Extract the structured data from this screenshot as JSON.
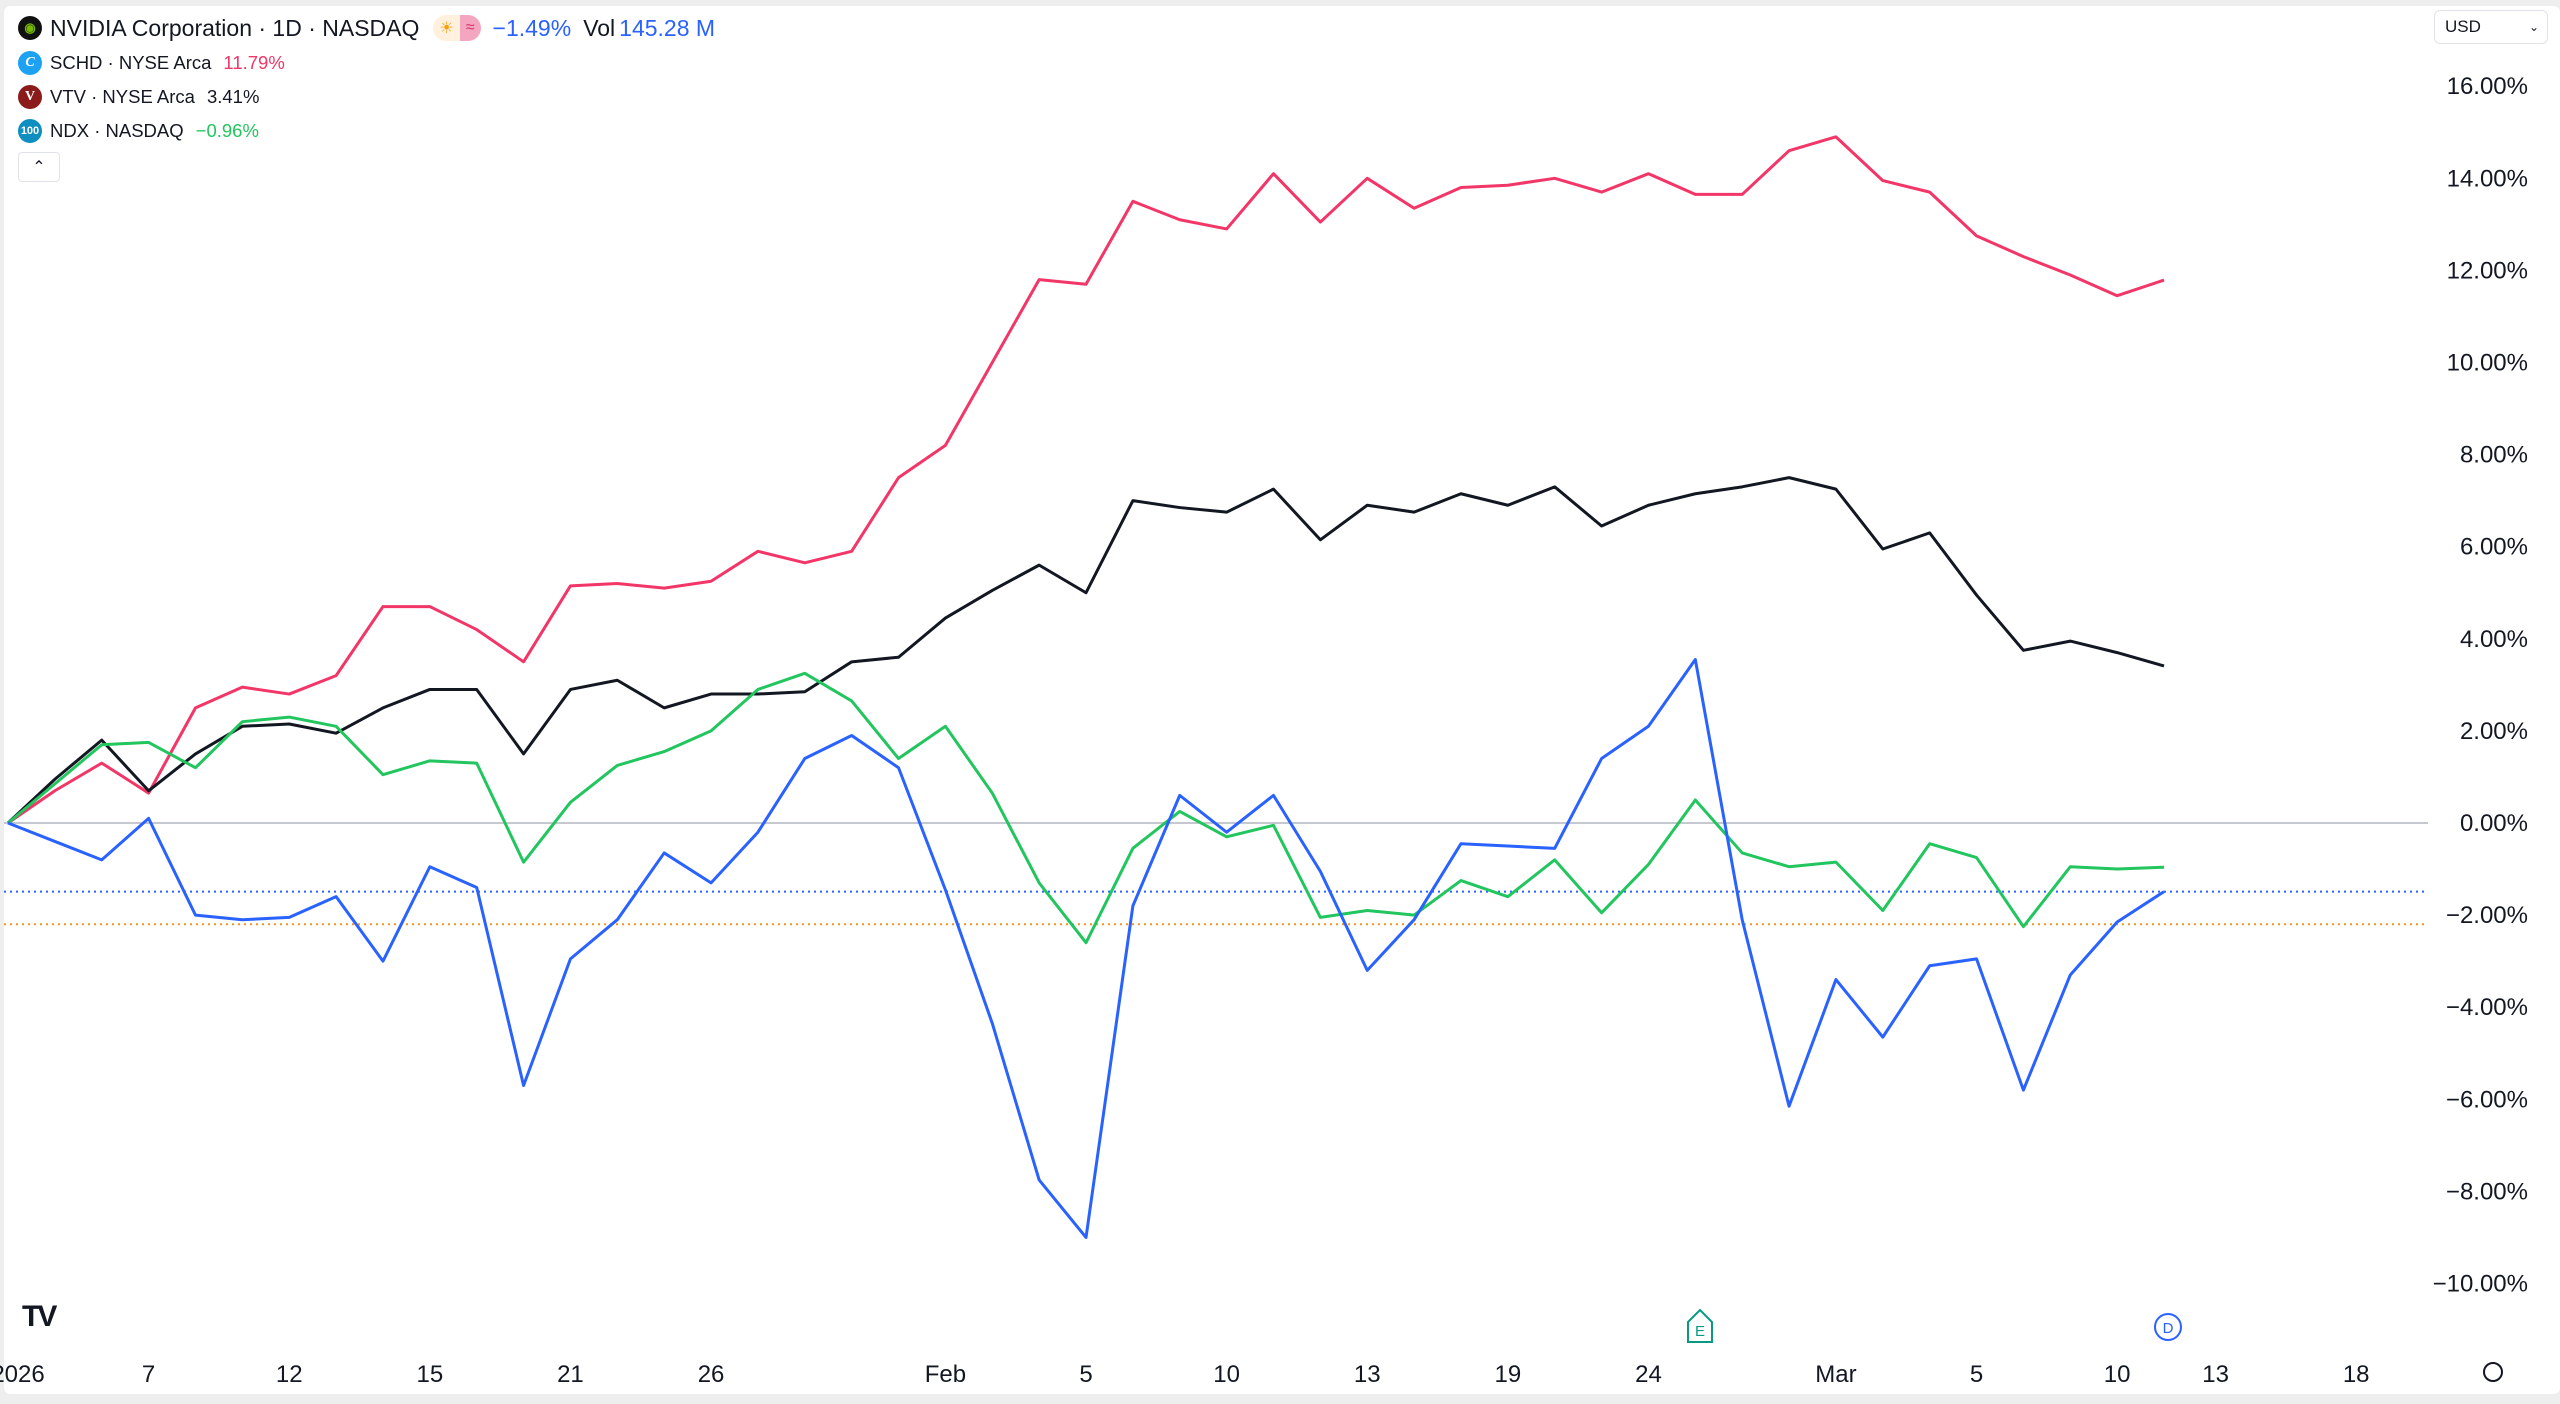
{
  "legend": {
    "main": {
      "name": "NVIDIA Corporation · 1D · NASDAQ",
      "change": "−1.49%",
      "vol_label": "Vol",
      "vol_value": "145.28 M",
      "logo_color": "#111111"
    },
    "items": [
      {
        "name": "SCHD · NYSE Arca",
        "change": "11.79%",
        "color": "#f23668",
        "logo_text": "C",
        "logo_color": "#1da1f2"
      },
      {
        "name": "VTV · NYSE Arca",
        "change": "3.41%",
        "color": "#131722",
        "logo_text": "V",
        "logo_color": "#8b1a1a"
      },
      {
        "name": "NDX · NASDAQ",
        "change": "−0.96%",
        "color": "#22c55e",
        "logo_text": "100",
        "logo_color": "#0e8fbf"
      }
    ],
    "collapse_icon": "chevron-up-icon"
  },
  "currency": {
    "value": "USD"
  },
  "markers": {
    "earnings": "E",
    "dividend": "D"
  },
  "chart_data": {
    "type": "line",
    "y_axis": {
      "ticks": [
        "16.00%",
        "14.00%",
        "12.00%",
        "10.00%",
        "8.00%",
        "6.00%",
        "4.00%",
        "2.00%",
        "0.00%",
        "−2.00%",
        "−4.00%",
        "−6.00%",
        "−8.00%",
        "−10.00%"
      ],
      "ylim": [
        -10.5,
        16.5
      ],
      "unit": "%"
    },
    "x_axis": {
      "tick_labels": [
        "2026",
        "7",
        "12",
        "15",
        "21",
        "26",
        "Feb",
        "5",
        "10",
        "13",
        "19",
        "24",
        "Mar",
        "5",
        "10",
        "13",
        "18"
      ]
    },
    "x": [
      "Jan 2",
      "Jan 5",
      "Jan 6",
      "Jan 7",
      "Jan 8",
      "Jan 9",
      "Jan 12",
      "Jan 13",
      "Jan 14",
      "Jan 15",
      "Jan 16",
      "Jan 20",
      "Jan 21",
      "Jan 22",
      "Jan 23",
      "Jan 26",
      "Jan 27",
      "Jan 28",
      "Jan 29",
      "Jan 30",
      "Feb 2",
      "Feb 3",
      "Feb 4",
      "Feb 5",
      "Feb 6",
      "Feb 9",
      "Feb 10",
      "Feb 11",
      "Feb 12",
      "Feb 13",
      "Feb 17",
      "Feb 18",
      "Feb 19",
      "Feb 20",
      "Feb 23",
      "Feb 24",
      "Feb 25",
      "Feb 26",
      "Feb 27",
      "Mar 2",
      "Mar 3",
      "Mar 4",
      "Mar 5",
      "Mar 6",
      "Mar 9",
      "Mar 10",
      "Mar 11"
    ],
    "series": [
      {
        "name": "SCHD",
        "color": "#f23668",
        "values": [
          0,
          0.7,
          1.3,
          0.65,
          2.5,
          2.95,
          2.8,
          3.2,
          4.7,
          4.7,
          4.2,
          3.5,
          5.15,
          5.2,
          5.1,
          5.25,
          5.9,
          5.65,
          5.9,
          7.5,
          8.2,
          10.0,
          11.8,
          11.7,
          13.5,
          13.1,
          12.9,
          14.1,
          13.05,
          14.0,
          13.35,
          13.8,
          13.85,
          14.0,
          13.7,
          14.1,
          13.65,
          13.65,
          14.6,
          14.9,
          13.95,
          13.7,
          12.75,
          12.3,
          11.9,
          11.45,
          11.79
        ]
      },
      {
        "name": "VTV",
        "color": "#131722",
        "values": [
          0,
          0.95,
          1.8,
          0.7,
          1.5,
          2.1,
          2.15,
          1.95,
          2.5,
          2.9,
          2.9,
          1.5,
          2.9,
          3.1,
          2.5,
          2.8,
          2.8,
          2.85,
          3.5,
          3.6,
          4.45,
          5.05,
          5.6,
          5.0,
          7.0,
          6.85,
          6.75,
          7.25,
          6.15,
          6.9,
          6.75,
          7.15,
          6.9,
          7.3,
          6.45,
          6.9,
          7.15,
          7.3,
          7.5,
          7.25,
          5.95,
          6.3,
          4.95,
          3.75,
          3.95,
          3.7,
          3.41
        ]
      },
      {
        "name": "NDX",
        "color": "#22c55e",
        "values": [
          0,
          0.85,
          1.7,
          1.75,
          1.2,
          2.2,
          2.3,
          2.1,
          1.05,
          1.35,
          1.3,
          -0.85,
          0.45,
          1.25,
          1.55,
          2.0,
          2.9,
          3.25,
          2.65,
          1.4,
          2.1,
          0.65,
          -1.3,
          -2.6,
          -0.55,
          0.25,
          -0.3,
          -0.05,
          -2.05,
          -1.9,
          -2.0,
          -1.25,
          -1.6,
          -0.8,
          -1.95,
          -0.9,
          0.5,
          -0.65,
          -0.95,
          -0.85,
          -1.9,
          -0.45,
          -0.75,
          -2.25,
          -0.95,
          -1.0,
          -0.96
        ]
      },
      {
        "name": "NVIDIA Corporation",
        "color": "#2962ff",
        "values": [
          0,
          -0.4,
          -0.8,
          0.1,
          -2.0,
          -2.1,
          -2.05,
          -1.6,
          -3.0,
          -0.95,
          -1.4,
          -5.7,
          -2.95,
          -2.1,
          -0.65,
          -1.3,
          -0.2,
          1.4,
          1.9,
          1.2,
          -1.45,
          -4.35,
          -7.75,
          -9.0,
          -1.8,
          0.6,
          -0.2,
          0.6,
          -1.05,
          -3.2,
          -2.1,
          -0.45,
          -0.5,
          -0.55,
          1.4,
          2.1,
          3.55,
          -2.1,
          -6.15,
          -3.4,
          -4.65,
          -3.1,
          -2.95,
          -5.8,
          -3.3,
          -2.15,
          -1.49
        ]
      }
    ],
    "reference_lines": [
      {
        "value": 0,
        "color": "#b2b5be",
        "style": "solid"
      },
      {
        "value": -1.49,
        "color": "#2962ff",
        "style": "dotted"
      },
      {
        "value": -2.2,
        "color": "#f7931a",
        "style": "dotted"
      }
    ],
    "grid": false,
    "legend_position": "top-left"
  }
}
